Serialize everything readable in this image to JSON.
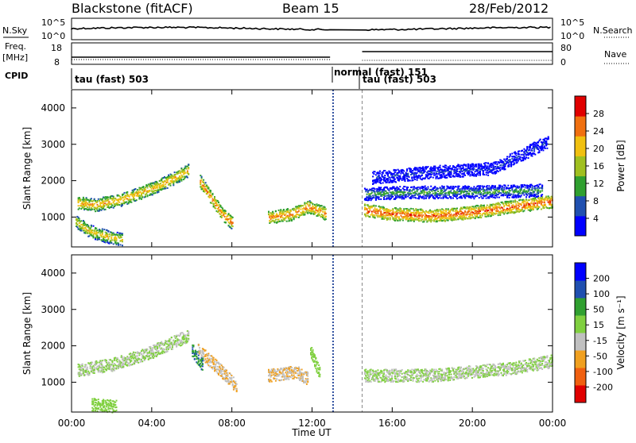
{
  "header": {
    "station": "Blackstone (fitACF)",
    "beam": "Beam 15",
    "date": "28/Feb/2012"
  },
  "top_panels": {
    "nsky_label": "N.Sky",
    "nsky_ticks": [
      "10^5",
      "10^0"
    ],
    "nsearch_label": "N.Search",
    "nsearch_ticks": [
      "10^5",
      "10^0"
    ],
    "freq_label": "Freq.",
    "freq_unit": "[MHz]",
    "freq_ticks": [
      "18",
      "8"
    ],
    "nave_label": "Nave",
    "nave_ticks": [
      "80",
      "0"
    ],
    "cpid_label": "CPID",
    "cpid_modes": [
      "tau (fast) 503",
      "normal (fast) 151",
      "tau (fast) 503"
    ]
  },
  "chart_data": [
    {
      "type": "heatmap",
      "title": "",
      "quantity": "Power",
      "xlabel": "",
      "ylabel": "Slant Range [km]",
      "ylim": [
        180,
        4500
      ],
      "y_ticks": [
        "4000",
        "3000",
        "2000",
        "1000"
      ],
      "colorbar_label": "Power [dB]",
      "colorbar_ticks": [
        "28",
        "24",
        "20",
        "16",
        "12",
        "8",
        "4"
      ],
      "colorbar_range": [
        0,
        30
      ],
      "colors": [
        "#0000ff",
        "#2050b0",
        "#30a030",
        "#a0c020",
        "#f0c010",
        "#f07010",
        "#e00000"
      ],
      "scatter_bands": [
        {
          "t": [
            0.3,
            1.2,
            2.5,
            4.0,
            5.0,
            5.8
          ],
          "r": [
            1400,
            1350,
            1500,
            1800,
            2050,
            2300
          ],
          "dB": 22
        },
        {
          "t": [
            0.2,
            0.8,
            1.5,
            2.0,
            2.5
          ],
          "r": [
            900,
            650,
            520,
            450,
            400
          ],
          "dB": 20
        },
        {
          "t": [
            6.4,
            7.0,
            7.5,
            8.0
          ],
          "r": [
            2000,
            1500,
            1100,
            850
          ],
          "dB": 24
        },
        {
          "t": [
            9.8,
            11.0,
            11.8,
            12.7
          ],
          "r": [
            1000,
            1100,
            1300,
            1100
          ],
          "dB": 24
        },
        {
          "t": [
            14.6,
            16.0,
            18.0,
            20.0,
            22.0,
            24.0
          ],
          "r": [
            1200,
            1100,
            1050,
            1150,
            1300,
            1450
          ],
          "dB": 26
        },
        {
          "t": [
            14.6,
            17.0,
            20.0,
            23.5
          ],
          "r": [
            1650,
            1700,
            1700,
            1750
          ],
          "dB": 12
        },
        {
          "t": [
            15.0,
            18.0,
            21.0,
            23.8
          ],
          "r": [
            2100,
            2250,
            2350,
            3100
          ],
          "dB": 6
        }
      ]
    },
    {
      "type": "heatmap",
      "title": "",
      "quantity": "Velocity",
      "xlabel": "Time UT",
      "ylabel": "Slant Range [km]",
      "ylim": [
        180,
        4500
      ],
      "y_ticks": [
        "4000",
        "3000",
        "2000",
        "1000"
      ],
      "colorbar_label": "Velocity [m s⁻¹]",
      "colorbar_ticks": [
        "200",
        "100",
        "50",
        "15",
        "-15",
        "-50",
        "-100",
        "-200"
      ],
      "colorbar_range": [
        -250,
        250
      ],
      "colors": [
        "#e00000",
        "#f06010",
        "#f0a020",
        "#c0c0c0",
        "#80d040",
        "#30a030",
        "#2050b0",
        "#0000ff"
      ],
      "x_ticks": [
        "00:00",
        "04:00",
        "08:00",
        "12:00",
        "16:00",
        "20:00",
        "00:00"
      ],
      "xlim_hours": [
        0,
        24
      ],
      "scatter_bands": [
        {
          "t": [
            0.3,
            2.0,
            4.0,
            5.8
          ],
          "r": [
            1350,
            1500,
            1850,
            2300
          ],
          "v": 0
        },
        {
          "t": [
            6.3,
            7.3,
            8.2
          ],
          "r": [
            1900,
            1400,
            900
          ],
          "v": -60
        },
        {
          "t": [
            9.8,
            11.2,
            11.8
          ],
          "r": [
            1200,
            1300,
            1100
          ],
          "v": -60
        },
        {
          "t": [
            11.9,
            12.4
          ],
          "r": [
            1900,
            1200
          ],
          "v": 30
        },
        {
          "t": [
            6.0,
            6.5
          ],
          "r": [
            1900,
            1500
          ],
          "v": 120
        },
        {
          "t": [
            14.6,
            18.0,
            22.0,
            24.0
          ],
          "r": [
            1200,
            1200,
            1400,
            1600
          ],
          "v": 0
        },
        {
          "t": [
            1.0,
            2.2
          ],
          "r": [
            400,
            350
          ],
          "v": 30
        }
      ]
    }
  ]
}
